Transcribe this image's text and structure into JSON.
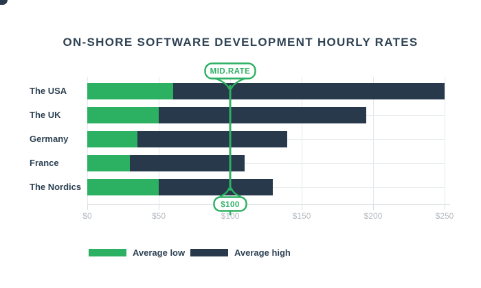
{
  "title": "ON-SHORE SOFTWARE DEVELOPMENT HOURLY RATES",
  "colors": {
    "green": "#2cb062",
    "navy": "#28394b",
    "title_text": "#2e4254",
    "axis_text": "#b3bac1",
    "gridline": "#e4e8ea"
  },
  "chart_data": {
    "type": "bar",
    "orientation": "horizontal",
    "stacked": true,
    "title": "ON-SHORE SOFTWARE DEVELOPMENT HOURLY RATES",
    "categories": [
      "The USA",
      "The UK",
      "Germany",
      "France",
      "The Nordics"
    ],
    "series": [
      {
        "name": "Average low",
        "color": "#2cb062",
        "values": [
          60,
          50,
          35,
          30,
          50
        ]
      },
      {
        "name": "Average high",
        "color": "#28394b",
        "values": [
          250,
          195,
          140,
          110,
          130
        ]
      }
    ],
    "series_note": "Average high values are bar total lengths; dark segment spans from low to high",
    "xlabel": "",
    "ylabel": "",
    "x_ticks": [
      "$0",
      "$50",
      "$100",
      "$150",
      "$200",
      "$250"
    ],
    "x_tick_values": [
      0,
      50,
      100,
      150,
      200,
      250
    ],
    "xlim": [
      0,
      250
    ],
    "grid": true,
    "legend_position": "bottom",
    "annotation": {
      "label": "MID.RATE",
      "value_label": "$100",
      "value": 100
    }
  }
}
